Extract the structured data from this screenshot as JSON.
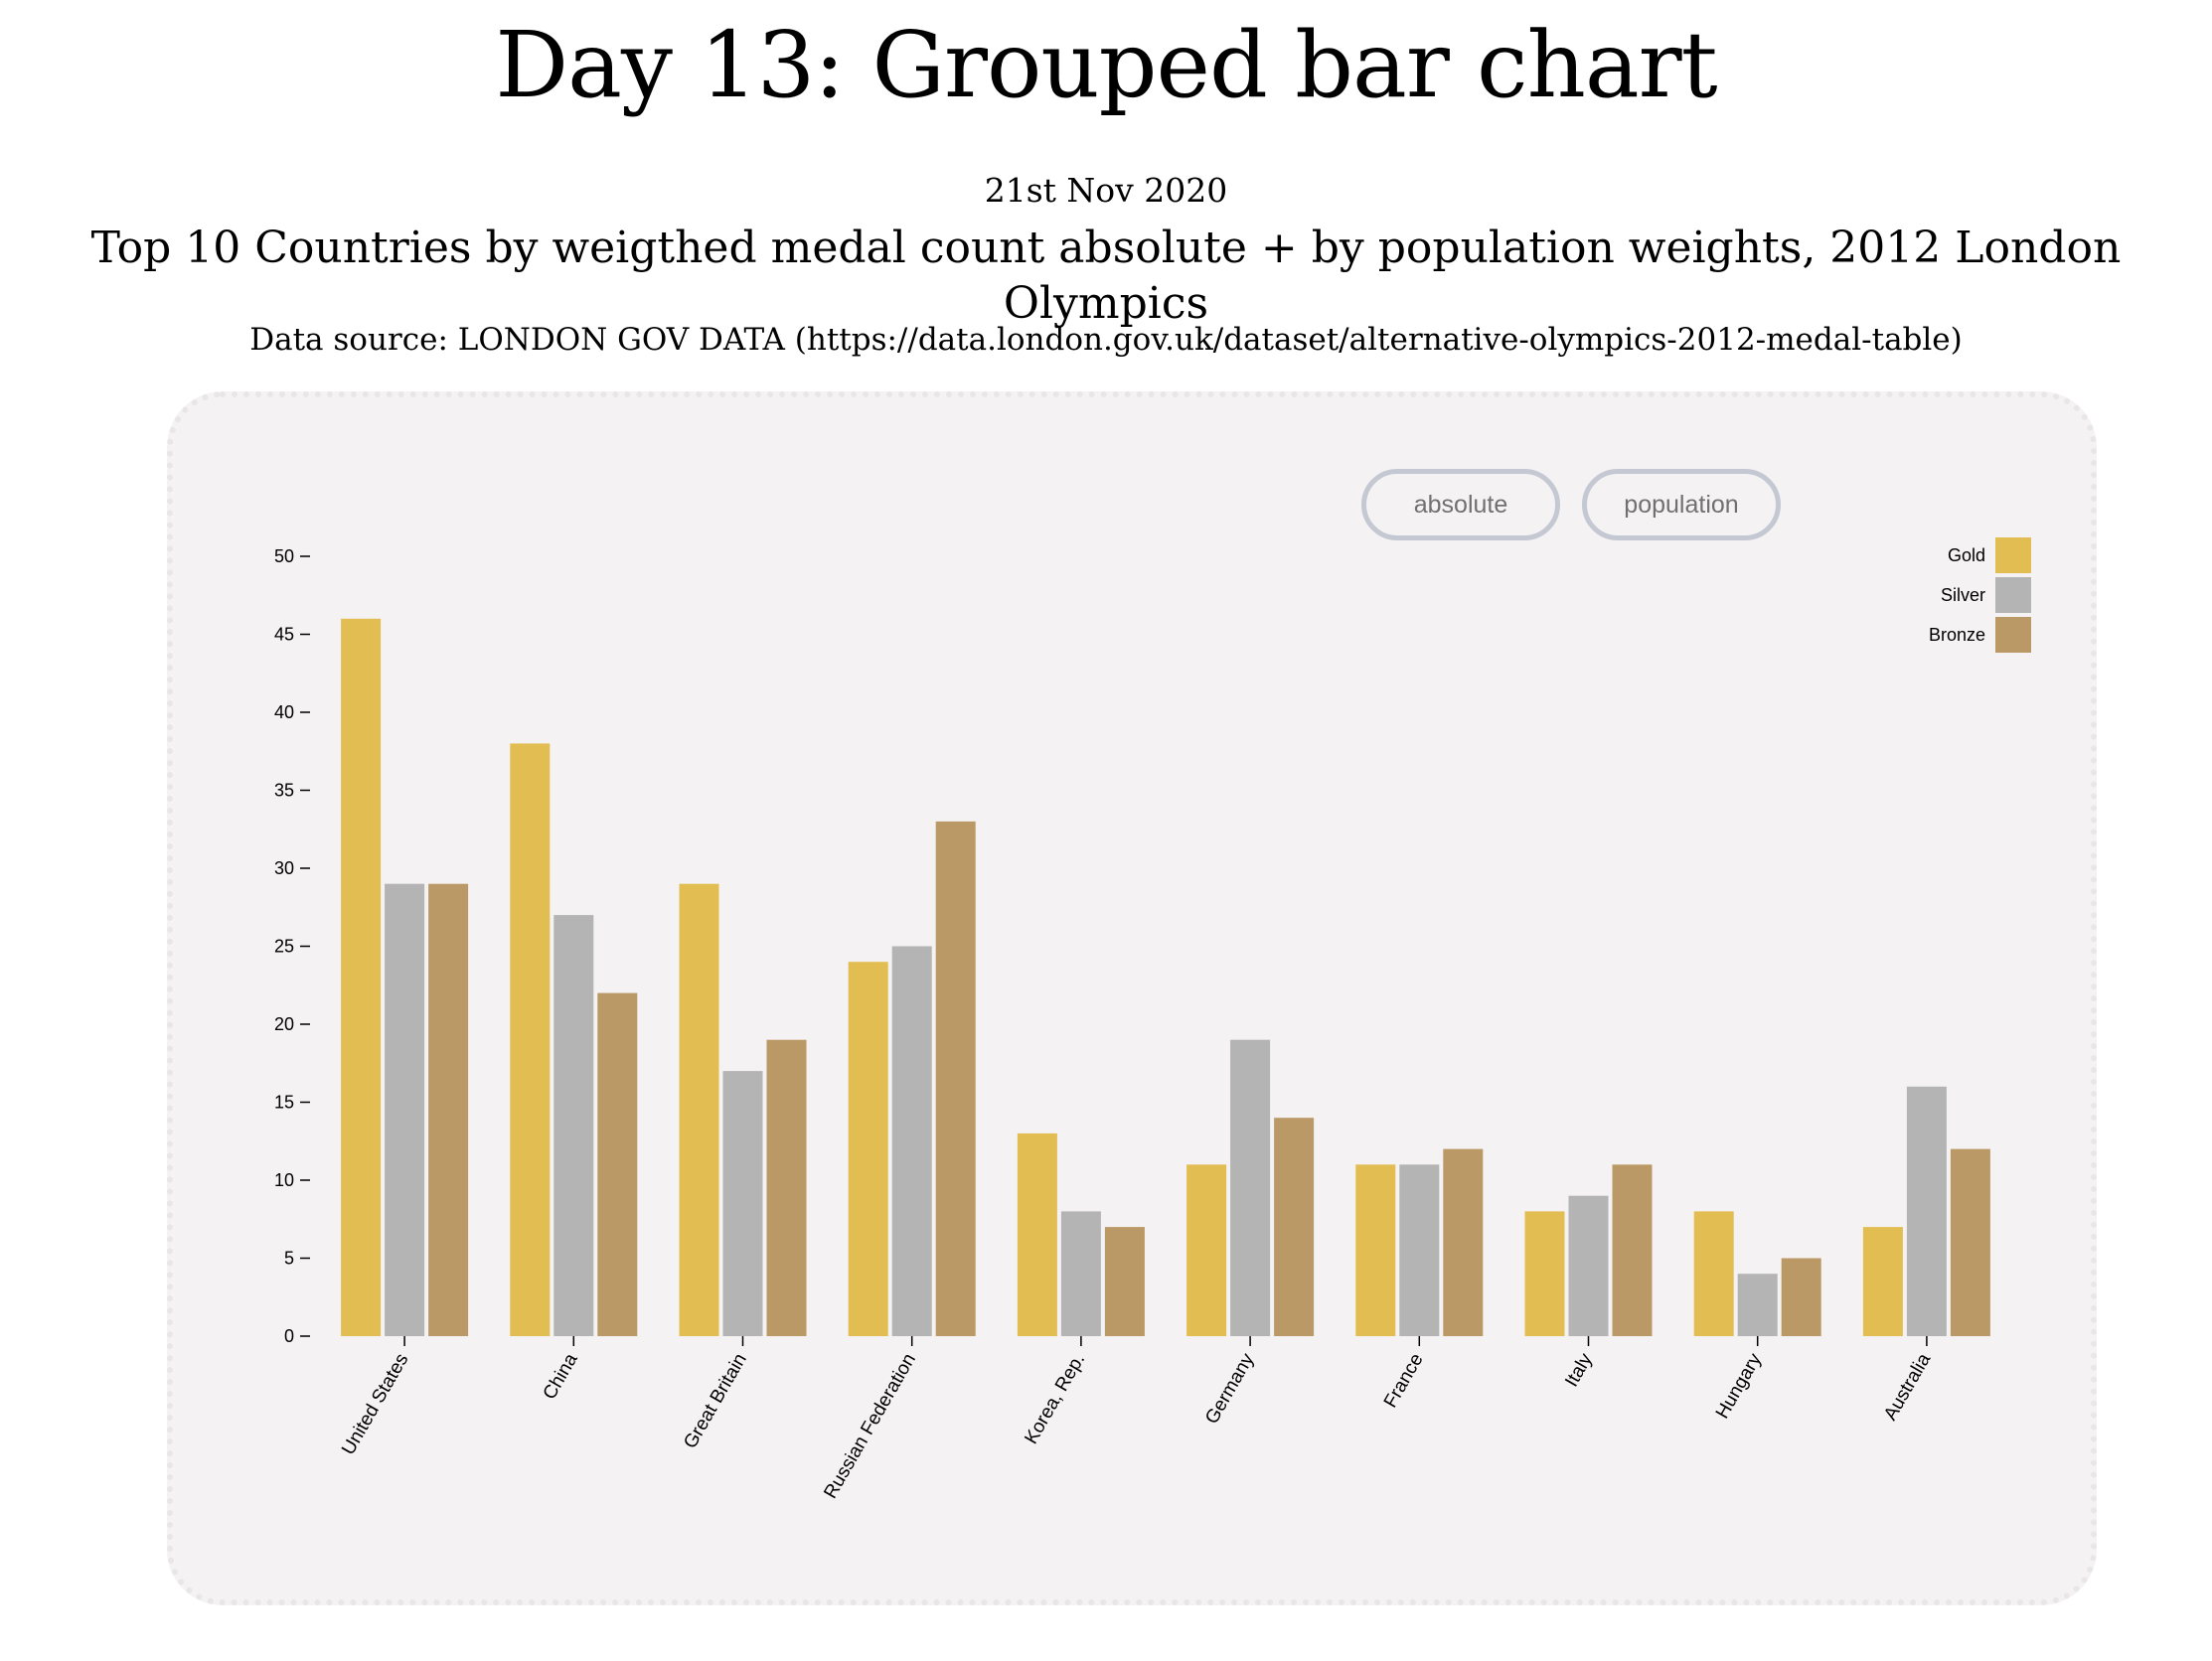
{
  "page": {
    "title": "Day 13: Grouped bar chart",
    "date": "21st Nov 2020",
    "subtitle": "Top 10 Countries by weigthed medal count absolute + by population weights, 2012 London Olympics",
    "source": "Data source: LONDON GOV DATA (https://data.london.gov.uk/dataset/alternative-olympics-2012-medal-table)"
  },
  "controls": {
    "absolute_label": "absolute",
    "population_label": "population"
  },
  "colors": {
    "gold": "#e2bd52",
    "silver": "#b4b4b4",
    "bronze": "#bb9966",
    "card_background": "#f4f2f3",
    "button_border": "#c4c8d2"
  },
  "chart_data": {
    "type": "bar",
    "categories": [
      "United States",
      "China",
      "Great Britain",
      "Russian Federation",
      "Korea, Rep.",
      "Germany",
      "France",
      "Italy",
      "Hungary",
      "Australia"
    ],
    "series": [
      {
        "name": "Gold",
        "values": [
          46,
          38,
          29,
          24,
          13,
          11,
          11,
          8,
          8,
          7
        ]
      },
      {
        "name": "Silver",
        "values": [
          29,
          27,
          17,
          25,
          8,
          19,
          11,
          9,
          4,
          16
        ]
      },
      {
        "name": "Bronze",
        "values": [
          29,
          22,
          19,
          33,
          7,
          14,
          12,
          11,
          5,
          12
        ]
      }
    ],
    "yticks": [
      0,
      5,
      10,
      15,
      20,
      25,
      30,
      35,
      40,
      45,
      50
    ],
    "ylim": [
      0,
      50
    ],
    "grid": false,
    "legend_position": "top-right",
    "xlabel": "",
    "ylabel": ""
  }
}
